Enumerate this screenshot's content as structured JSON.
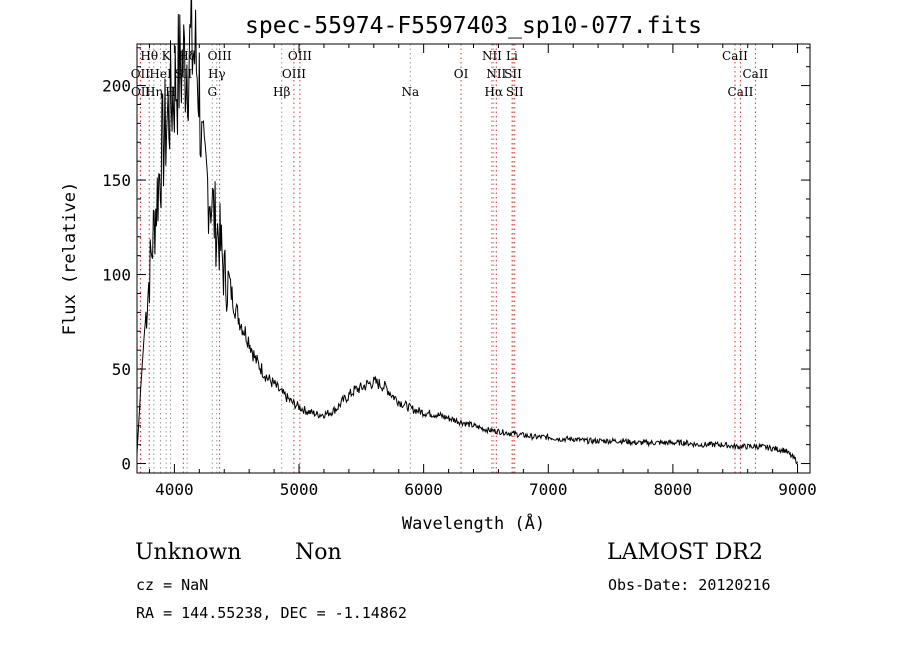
{
  "chart_data": {
    "type": "line",
    "title": "spec-55974-F5597403_sp10-077.fits",
    "xlabel": "Wavelength (Å)",
    "ylabel": "Flux (relative)",
    "xlim": [
      3700,
      9100
    ],
    "ylim": [
      -5,
      222
    ],
    "x_ticks": [
      4000,
      5000,
      6000,
      7000,
      8000,
      9000
    ],
    "y_ticks": [
      0,
      50,
      100,
      150,
      200
    ],
    "grid": false,
    "series": [
      {
        "x": [
          3700,
          3730,
          3760,
          3800,
          3850,
          3900,
          3950,
          4000,
          4050,
          4100,
          4130,
          4150,
          4170,
          4190,
          4200,
          4220,
          4240,
          4260,
          4280,
          4300,
          4320,
          4340,
          4360,
          4400,
          4450,
          4500,
          4550,
          4600,
          4650,
          4700,
          4750,
          4800,
          4850,
          4900,
          4950,
          5000,
          5050,
          5100,
          5150,
          5200,
          5250,
          5300,
          5350,
          5400,
          5450,
          5500,
          5550,
          5600,
          5650,
          5700,
          5750,
          5800,
          5850,
          5900,
          5950,
          6000,
          6100,
          6200,
          6300,
          6400,
          6500,
          6600,
          6700,
          6800,
          6900,
          7000,
          7100,
          7200,
          7300,
          7400,
          7500,
          7600,
          7700,
          7800,
          7900,
          8000,
          8100,
          8200,
          8300,
          8400,
          8500,
          8600,
          8700,
          8800,
          8900,
          9000
        ],
        "y": [
          5,
          40,
          70,
          100,
          135,
          165,
          185,
          200,
          210,
          215,
          219,
          220,
          214,
          205,
          200,
          165,
          150,
          150,
          145,
          140,
          130,
          125,
          120,
          100,
          92,
          80,
          72,
          65,
          55,
          50,
          45,
          42,
          38,
          35,
          32,
          30,
          28,
          27,
          26,
          26,
          27,
          29,
          33,
          36,
          39,
          40,
          42,
          43,
          42,
          40,
          36,
          33,
          31,
          29,
          28,
          27,
          26,
          24,
          22,
          20,
          18,
          17,
          16,
          15,
          14,
          14,
          13,
          13,
          12,
          12,
          12,
          12,
          11,
          11,
          11,
          11,
          11,
          10,
          10,
          10,
          9,
          9,
          9,
          8,
          7,
          1
        ]
      }
    ],
    "lines": [
      {
        "label": "Hθ",
        "x": 3798,
        "row": 0,
        "color": "#d33"
      },
      {
        "label": "K",
        "x": 3934,
        "row": 0,
        "color": "#999"
      },
      {
        "label": "Hδ",
        "x": 4102,
        "row": 0,
        "color": "#999"
      },
      {
        "label": "OII",
        "x": 3727,
        "row": 1,
        "color": "#d33"
      },
      {
        "label": "HeI",
        "x": 3889,
        "row": 1,
        "color": "#999"
      },
      {
        "label": "SII",
        "x": 4072,
        "row": 1,
        "color": "#d33"
      },
      {
        "label": "OIII",
        "x": 4363,
        "row": 0,
        "color": "#d33"
      },
      {
        "label": "Hγ",
        "x": 4340,
        "row": 1,
        "color": "#999"
      },
      {
        "label": "G",
        "x": 4304,
        "row": 2,
        "color": "#999"
      },
      {
        "label": "OII",
        "x": 3729,
        "row": 2,
        "color": "#d33"
      },
      {
        "label": "Hη",
        "x": 3835,
        "row": 2,
        "color": "#999"
      },
      {
        "label": "H",
        "x": 3969,
        "row": 2,
        "color": "#999"
      },
      {
        "label": "OIII",
        "x": 5007,
        "row": 0,
        "color": "#d33"
      },
      {
        "label": "OIII",
        "x": 4959,
        "row": 1,
        "color": "#d33"
      },
      {
        "label": "Hβ",
        "x": 4861,
        "row": 2,
        "color": "#999"
      },
      {
        "label": "Na",
        "x": 5893,
        "row": 2,
        "color": "#999"
      },
      {
        "label": "OI",
        "x": 6300,
        "row": 1,
        "color": "#d33"
      },
      {
        "label": "NII",
        "x": 6548,
        "row": 0,
        "color": "#d33"
      },
      {
        "label": "Li",
        "x": 6708,
        "row": 0,
        "color": "#999"
      },
      {
        "label": "NII",
        "x": 6583,
        "row": 1,
        "color": "#d33"
      },
      {
        "label": "SII",
        "x": 6717,
        "row": 1,
        "color": "#d33"
      },
      {
        "label": "Hα",
        "x": 6563,
        "row": 2,
        "color": "#999"
      },
      {
        "label": "SII",
        "x": 6731,
        "row": 2,
        "color": "#d33"
      },
      {
        "label": "CaII",
        "x": 8498,
        "row": 0,
        "color": "#d33"
      },
      {
        "label": "CaII",
        "x": 8662,
        "row": 1,
        "color": "#d33"
      },
      {
        "label": "CaII",
        "x": 8542,
        "row": 2,
        "color": "#d33"
      }
    ]
  },
  "info": {
    "class": "Unknown",
    "subclass": "Non",
    "survey": "LAMOST DR2",
    "cz": "cz = NaN",
    "obs_date": "Obs-Date: 20120216",
    "coords": "RA = 144.55238, DEC =  -1.14862"
  }
}
